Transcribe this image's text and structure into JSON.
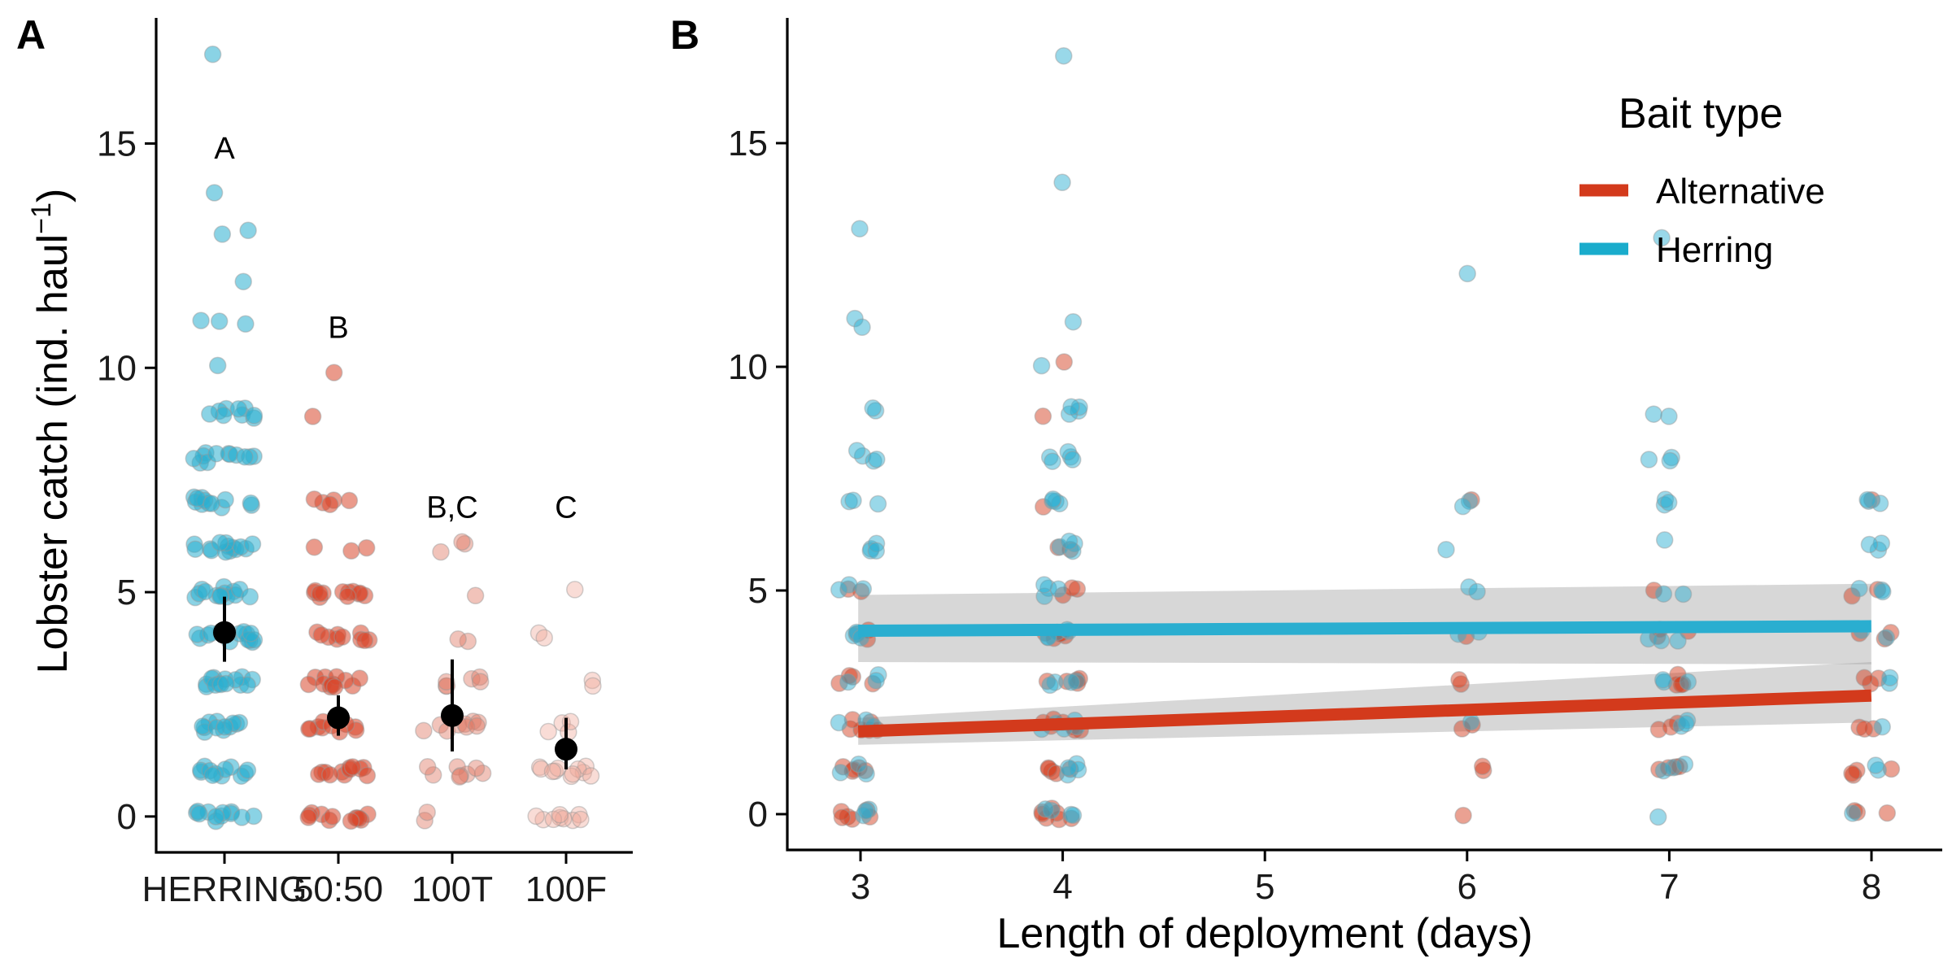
{
  "chart_data": [
    {
      "panel": "A",
      "type": "scatter",
      "ylabel": "Lobster catch (ind. haul",
      "ylabel_sup": "−1",
      "ylabel_end": ")",
      "ylim": [
        -0.8,
        17.8
      ],
      "yticks": [
        0,
        5,
        10,
        15
      ],
      "categories": [
        "HERRING",
        "50:50",
        "100T",
        "100F"
      ],
      "letters": [
        {
          "category": "HERRING",
          "text": "A",
          "y": 14.9
        },
        {
          "category": "50:50",
          "text": "B",
          "y": 10.9
        },
        {
          "category": "100T",
          "text": "B,C",
          "y": 6.9
        },
        {
          "category": "100F",
          "text": "C",
          "y": 6.9
        }
      ],
      "means": [
        {
          "category": "HERRING",
          "mean": 4.1,
          "lower": 3.45,
          "upper": 4.9
        },
        {
          "category": "50:50",
          "mean": 2.2,
          "lower": 1.8,
          "upper": 2.7
        },
        {
          "category": "100T",
          "mean": 2.25,
          "lower": 1.45,
          "upper": 3.5
        },
        {
          "category": "100F",
          "mean": 1.5,
          "lower": 1.05,
          "upper": 2.2
        }
      ],
      "groups": [
        {
          "category": "HERRING",
          "color": "#2aaed0",
          "opacity": 0.55,
          "points": [
            [
              0,
              12
            ],
            [
              1,
              12
            ],
            [
              2,
              12
            ],
            [
              3,
              14
            ],
            [
              4,
              16
            ],
            [
              5,
              14
            ],
            [
              6,
              14
            ],
            [
              7,
              12
            ],
            [
              8,
              12
            ],
            [
              9,
              9
            ],
            [
              10,
              1
            ],
            [
              11,
              3
            ],
            [
              12,
              1
            ],
            [
              13,
              2
            ],
            [
              14,
              1
            ],
            [
              17,
              1
            ]
          ]
        },
        {
          "category": "50:50",
          "color": "#d8472b",
          "opacity": 0.55,
          "points": [
            [
              0,
              12
            ],
            [
              1,
              12
            ],
            [
              2,
              10
            ],
            [
              3,
              12
            ],
            [
              4,
              10
            ],
            [
              5,
              12
            ],
            [
              6,
              3
            ],
            [
              7,
              5
            ],
            [
              9,
              1
            ],
            [
              10,
              1
            ]
          ]
        },
        {
          "category": "100T",
          "color": "#e07a66",
          "opacity": 0.45,
          "points": [
            [
              0,
              2
            ],
            [
              1,
              8
            ],
            [
              2,
              9
            ],
            [
              3,
              6
            ],
            [
              4,
              2
            ],
            [
              5,
              1
            ],
            [
              6,
              3
            ]
          ]
        },
        {
          "category": "100F",
          "color": "#f0a898",
          "opacity": 0.4,
          "points": [
            [
              0,
              9
            ],
            [
              1,
              11
            ],
            [
              2,
              4
            ],
            [
              3,
              2
            ],
            [
              4,
              2
            ],
            [
              5,
              1
            ]
          ]
        }
      ]
    },
    {
      "panel": "B",
      "type": "scatter",
      "xlabel": "Length of deployment (days)",
      "xlim": [
        2.65,
        8.35
      ],
      "xticks": [
        3,
        4,
        5,
        6,
        7,
        8
      ],
      "ylim": [
        -0.8,
        17.8
      ],
      "yticks": [
        0,
        5,
        10,
        15
      ],
      "legend": {
        "title": "Bait type",
        "position": "top-right",
        "entries": [
          {
            "label": "Alternative",
            "color": "#d33a1c"
          },
          {
            "label": "Herring",
            "color": "#1aaccc"
          }
        ]
      },
      "series": [
        {
          "name": "Alternative",
          "color": "#d33a1c",
          "fit": {
            "x": [
              3,
              8
            ],
            "y": [
              1.85,
              2.65
            ]
          },
          "band": {
            "x": [
              3,
              8
            ],
            "lower": [
              1.55,
              2.05
            ],
            "upper": [
              2.15,
              3.4
            ]
          },
          "points": [
            [
              3,
              0,
              6
            ],
            [
              3,
              1,
              5
            ],
            [
              3,
              2,
              6
            ],
            [
              3,
              3,
              4
            ],
            [
              3,
              4,
              3
            ],
            [
              3,
              5,
              2
            ],
            [
              4,
              0,
              7
            ],
            [
              4,
              1,
              5
            ],
            [
              4,
              2,
              7
            ],
            [
              4,
              3,
              5
            ],
            [
              4,
              4,
              5
            ],
            [
              4,
              5,
              3
            ],
            [
              4,
              6,
              2
            ],
            [
              4,
              7,
              1
            ],
            [
              4,
              9,
              1
            ],
            [
              4,
              10,
              1
            ],
            [
              6,
              0,
              1
            ],
            [
              6,
              1,
              2
            ],
            [
              6,
              2,
              2
            ],
            [
              6,
              3,
              2
            ],
            [
              6,
              4,
              1
            ],
            [
              6,
              7,
              1
            ],
            [
              7,
              1,
              4
            ],
            [
              7,
              2,
              3
            ],
            [
              7,
              3,
              4
            ],
            [
              7,
              4,
              3
            ],
            [
              7,
              5,
              1
            ],
            [
              8,
              0,
              3
            ],
            [
              8,
              1,
              4
            ],
            [
              8,
              2,
              3
            ],
            [
              8,
              3,
              3
            ],
            [
              8,
              4,
              3
            ],
            [
              8,
              5,
              2
            ],
            [
              8,
              7,
              1
            ]
          ]
        },
        {
          "name": "Herring",
          "color": "#2aaed0",
          "fit": {
            "x": [
              3,
              8
            ],
            "y": [
              4.1,
              4.2
            ]
          },
          "band": {
            "x": [
              3,
              8
            ],
            "lower": [
              3.4,
              3.35
            ],
            "upper": [
              4.9,
              5.15
            ]
          },
          "points": [
            [
              3,
              0,
              3
            ],
            [
              3,
              1,
              3
            ],
            [
              3,
              2,
              3
            ],
            [
              3,
              3,
              3
            ],
            [
              3,
              4,
              4
            ],
            [
              3,
              5,
              3
            ],
            [
              3,
              6,
              4
            ],
            [
              3,
              7,
              3
            ],
            [
              3,
              8,
              4
            ],
            [
              3,
              9,
              2
            ],
            [
              3,
              11,
              2
            ],
            [
              3,
              13,
              1
            ],
            [
              4,
              0,
              4
            ],
            [
              4,
              1,
              4
            ],
            [
              4,
              2,
              5
            ],
            [
              4,
              3,
              4
            ],
            [
              4,
              4,
              5
            ],
            [
              4,
              5,
              4
            ],
            [
              4,
              6,
              4
            ],
            [
              4,
              7,
              4
            ],
            [
              4,
              8,
              5
            ],
            [
              4,
              9,
              4
            ],
            [
              4,
              10,
              1
            ],
            [
              4,
              11,
              1
            ],
            [
              4,
              14,
              1
            ],
            [
              4,
              17,
              1
            ],
            [
              6,
              2,
              1
            ],
            [
              6,
              4,
              2
            ],
            [
              6,
              5,
              2
            ],
            [
              6,
              6,
              1
            ],
            [
              6,
              7,
              2
            ],
            [
              6,
              12,
              1
            ],
            [
              7,
              0,
              1
            ],
            [
              7,
              1,
              3
            ],
            [
              7,
              2,
              3
            ],
            [
              7,
              3,
              3
            ],
            [
              7,
              4,
              3
            ],
            [
              7,
              5,
              2
            ],
            [
              7,
              6,
              1
            ],
            [
              7,
              7,
              3
            ],
            [
              7,
              8,
              3
            ],
            [
              7,
              9,
              2
            ],
            [
              7,
              13,
              1
            ],
            [
              8,
              0,
              1
            ],
            [
              8,
              1,
              2
            ],
            [
              8,
              2,
              1
            ],
            [
              8,
              3,
              2
            ],
            [
              8,
              4,
              2
            ],
            [
              8,
              5,
              3
            ],
            [
              8,
              6,
              3
            ],
            [
              8,
              7,
              3
            ]
          ]
        }
      ]
    }
  ]
}
